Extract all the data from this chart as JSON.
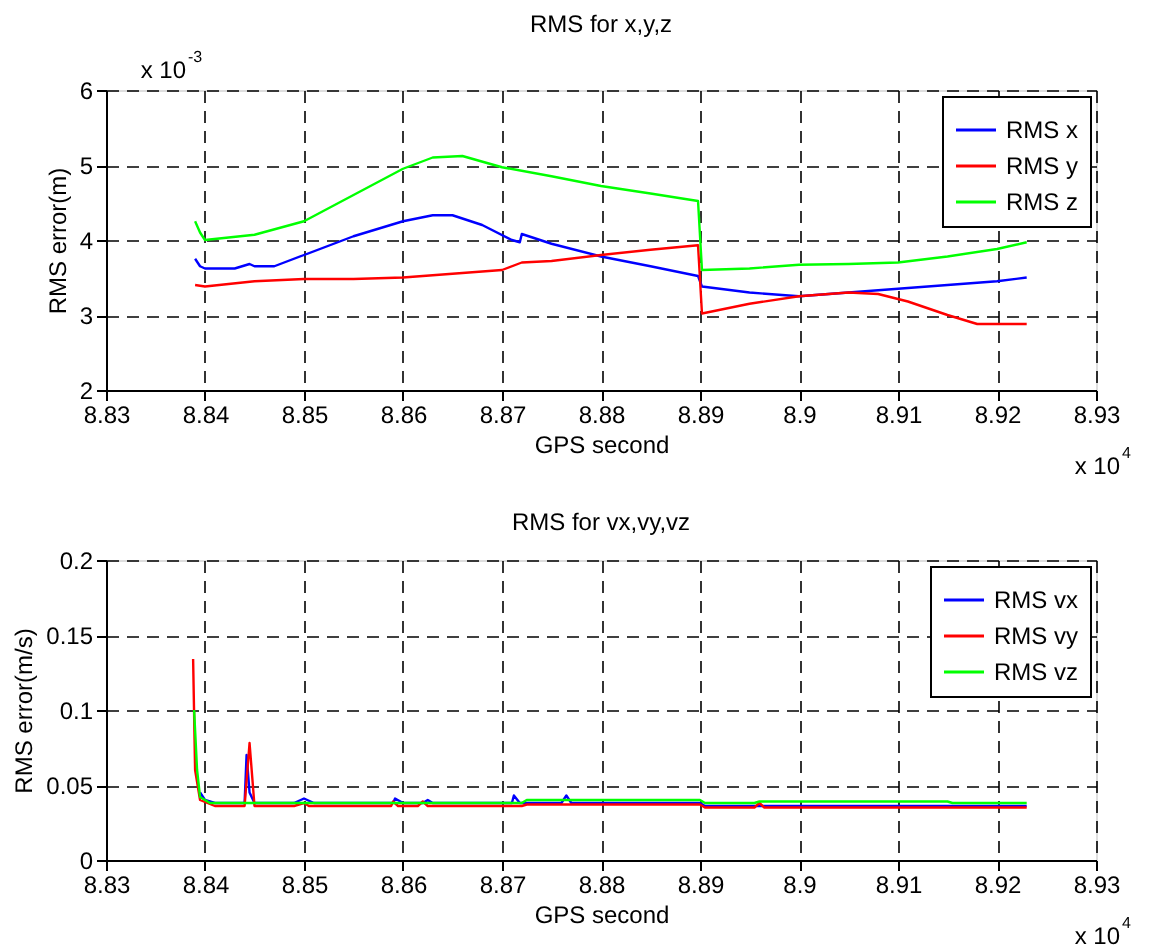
{
  "chart_data": [
    {
      "type": "line",
      "title": "RMS for x,y,z",
      "xlabel": "GPS second",
      "ylabel": "RMS error(m)",
      "annotations": [
        "x 10$^{-3}$",
        "x 10$^{4}$"
      ],
      "xlim": [
        8.83,
        8.93
      ],
      "xticks": [
        8.83,
        8.84,
        8.85,
        8.86,
        8.87,
        8.88,
        8.89,
        8.9,
        8.91,
        8.92,
        8.93
      ],
      "ylim": [
        2,
        6
      ],
      "yticks": [
        2,
        3,
        4,
        5,
        6
      ],
      "grid": true,
      "legend": "top right",
      "line_style": "solid",
      "series": [
        {
          "name": "RMS x",
          "color": "#0000ff",
          "x": [
            8.839,
            8.8395,
            8.84,
            8.843,
            8.8445,
            8.845,
            8.847,
            8.85,
            8.855,
            8.86,
            8.863,
            8.865,
            8.868,
            8.871,
            8.8718,
            8.872,
            8.875,
            8.88,
            8.885,
            8.8898,
            8.8902,
            8.895,
            8.9,
            8.905,
            8.91,
            8.915,
            8.92,
            8.923
          ],
          "values": [
            3.75,
            3.65,
            3.62,
            3.62,
            3.68,
            3.65,
            3.65,
            3.8,
            4.05,
            4.25,
            4.33,
            4.33,
            4.2,
            4.0,
            3.97,
            4.08,
            3.95,
            3.78,
            3.65,
            3.52,
            3.38,
            3.3,
            3.25,
            3.3,
            3.35,
            3.4,
            3.45,
            3.5
          ]
        },
        {
          "name": "RMS y",
          "color": "#ff0000",
          "x": [
            8.839,
            8.84,
            8.845,
            8.85,
            8.855,
            8.86,
            8.865,
            8.87,
            8.872,
            8.875,
            8.88,
            8.885,
            8.8898,
            8.8902,
            8.895,
            8.9,
            8.905,
            8.908,
            8.911,
            8.915,
            8.918,
            8.923
          ],
          "values": [
            3.4,
            3.38,
            3.45,
            3.48,
            3.48,
            3.5,
            3.55,
            3.6,
            3.7,
            3.72,
            3.8,
            3.87,
            3.93,
            3.02,
            3.15,
            3.25,
            3.3,
            3.28,
            3.18,
            3.0,
            2.88,
            2.88
          ]
        },
        {
          "name": "RMS z",
          "color": "#00ff00",
          "x": [
            8.839,
            8.8395,
            8.84,
            8.845,
            8.85,
            8.855,
            8.86,
            8.863,
            8.866,
            8.87,
            8.875,
            8.88,
            8.885,
            8.8898,
            8.8902,
            8.895,
            8.9,
            8.905,
            8.91,
            8.915,
            8.92,
            8.923
          ],
          "values": [
            4.25,
            4.1,
            4.0,
            4.07,
            4.25,
            4.6,
            4.95,
            5.1,
            5.12,
            4.97,
            4.85,
            4.72,
            4.62,
            4.52,
            3.6,
            3.62,
            3.67,
            3.68,
            3.7,
            3.78,
            3.88,
            3.97
          ]
        }
      ]
    },
    {
      "type": "line",
      "title": "RMS for vx,vy,vz",
      "xlabel": "GPS second",
      "ylabel": "RMS error(m/s)",
      "annotations": [
        "x 10$^{4}$"
      ],
      "xlim": [
        8.83,
        8.93
      ],
      "xticks": [
        8.83,
        8.84,
        8.85,
        8.86,
        8.87,
        8.88,
        8.89,
        8.9,
        8.91,
        8.92,
        8.93
      ],
      "ylim": [
        0,
        0.2
      ],
      "yticks": [
        0,
        0.05,
        0.1,
        0.15,
        0.2
      ],
      "grid": true,
      "legend": "top right",
      "line_style": "solid",
      "series": [
        {
          "name": "RMS vx",
          "color": "#0000ff",
          "x": [
            8.8395,
            8.84,
            8.841,
            8.844,
            8.8442,
            8.8445,
            8.845,
            8.849,
            8.85,
            8.851,
            8.859,
            8.8592,
            8.86,
            8.862,
            8.8625,
            8.863,
            8.871,
            8.8712,
            8.8718,
            8.876,
            8.8765,
            8.877,
            8.89,
            8.8905,
            8.923
          ],
          "values": [
            0.045,
            0.04,
            0.038,
            0.038,
            0.07,
            0.045,
            0.038,
            0.038,
            0.041,
            0.038,
            0.038,
            0.041,
            0.038,
            0.038,
            0.04,
            0.038,
            0.038,
            0.043,
            0.038,
            0.038,
            0.043,
            0.038,
            0.038,
            0.036,
            0.036
          ]
        },
        {
          "name": "RMS vy",
          "color": "#ff0000",
          "x": [
            8.8388,
            8.839,
            8.8395,
            8.841,
            8.844,
            8.8445,
            8.845,
            8.849,
            8.85,
            8.8505,
            8.8588,
            8.859,
            8.8595,
            8.8615,
            8.862,
            8.8625,
            8.872,
            8.8725,
            8.89,
            8.8905,
            8.8955,
            8.896,
            8.8965,
            8.923
          ],
          "values": [
            0.134,
            0.06,
            0.04,
            0.036,
            0.036,
            0.078,
            0.036,
            0.036,
            0.038,
            0.036,
            0.036,
            0.039,
            0.036,
            0.036,
            0.039,
            0.036,
            0.036,
            0.037,
            0.037,
            0.035,
            0.035,
            0.038,
            0.035,
            0.035
          ]
        },
        {
          "name": "RMS vz",
          "color": "#00ff00",
          "x": [
            8.8389,
            8.8392,
            8.8395,
            8.8405,
            8.872,
            8.8725,
            8.89,
            8.8905,
            8.8955,
            8.896,
            8.915,
            8.9155,
            8.923
          ],
          "values": [
            0.1,
            0.06,
            0.042,
            0.038,
            0.038,
            0.04,
            0.04,
            0.038,
            0.038,
            0.039,
            0.039,
            0.038,
            0.038
          ]
        }
      ]
    }
  ]
}
